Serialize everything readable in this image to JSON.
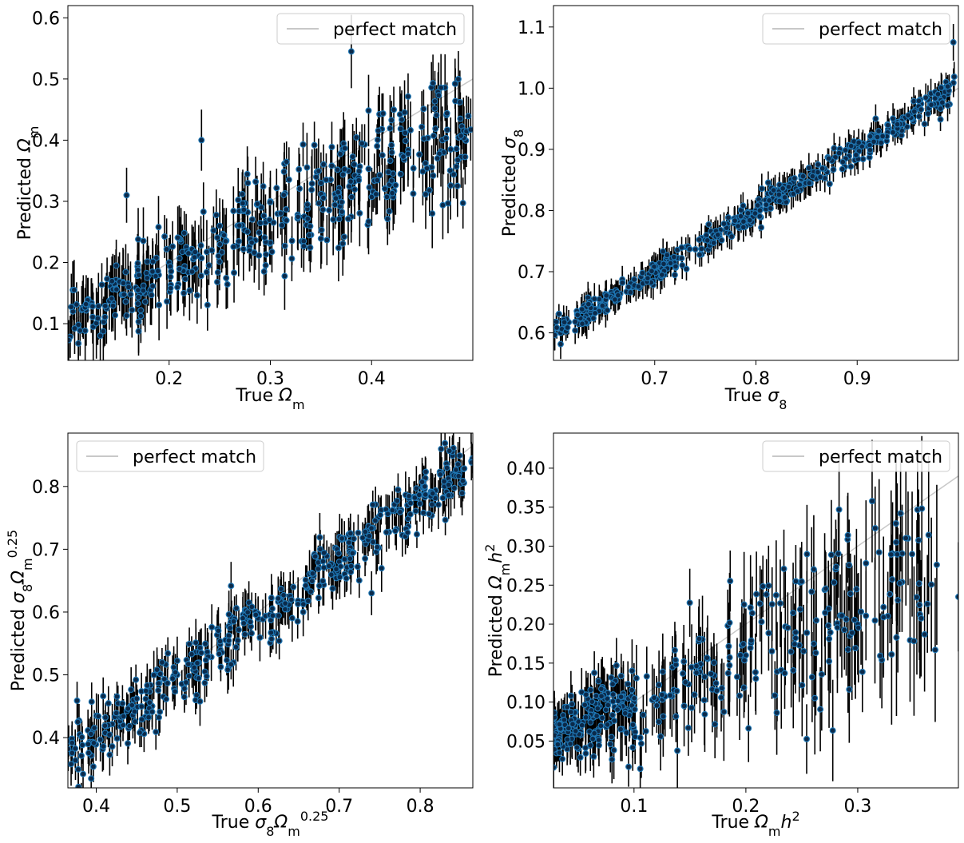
{
  "figure": {
    "legend_label": "perfect match"
  },
  "style": {
    "point_fill": "#0b2a4a",
    "point_edge": "#1f77b4",
    "error_bar_color": "#000000",
    "perfect_line_color": "#c8c8c8",
    "axes_color": "#000000"
  },
  "chart_data": [
    {
      "id": "omega_m",
      "type": "scatter",
      "xlabel_text": "True ",
      "xlabel_symbol": "Ω",
      "xlabel_sub": "m",
      "ylabel_text": "Predicted ",
      "ylabel_symbol": "Ω",
      "ylabel_sub": "m",
      "xlim": [
        0.1,
        0.5
      ],
      "ylim": [
        0.04,
        0.62
      ],
      "xticks": [
        0.2,
        0.3,
        0.4
      ],
      "yticks": [
        0.1,
        0.2,
        0.3,
        0.4,
        0.5,
        0.6
      ],
      "tick_decimals": 1,
      "legend_position": "top-right",
      "perfect_match_line": true,
      "n_points": 420,
      "points": [
        {
          "x": 0.105,
          "y": 0.12,
          "err": 0.04
        },
        {
          "x": 0.12,
          "y": 0.14,
          "err": 0.035
        },
        {
          "x": 0.15,
          "y": 0.17,
          "err": 0.04
        },
        {
          "x": 0.158,
          "y": 0.31,
          "err": 0.045
        },
        {
          "x": 0.2,
          "y": 0.2,
          "err": 0.04
        },
        {
          "x": 0.232,
          "y": 0.4,
          "err": 0.05
        },
        {
          "x": 0.25,
          "y": 0.26,
          "err": 0.045
        },
        {
          "x": 0.3,
          "y": 0.3,
          "err": 0.05
        },
        {
          "x": 0.35,
          "y": 0.33,
          "err": 0.05
        },
        {
          "x": 0.38,
          "y": 0.545,
          "err": 0.06
        },
        {
          "x": 0.42,
          "y": 0.38,
          "err": 0.055
        },
        {
          "x": 0.47,
          "y": 0.4,
          "err": 0.055
        }
      ],
      "noise_sd": 0.04,
      "err_mean": 0.045,
      "fit": {
        "slope": 0.82,
        "intercept": 0.02
      }
    },
    {
      "id": "sigma_8",
      "type": "scatter",
      "xlabel_text": "True ",
      "xlabel_symbol": "σ",
      "xlabel_sub": "8",
      "ylabel_text": "Predicted ",
      "ylabel_symbol": "σ",
      "ylabel_sub": "8",
      "xlim": [
        0.6,
        1.0
      ],
      "ylim": [
        0.555,
        1.135
      ],
      "xticks": [
        0.7,
        0.8,
        0.9
      ],
      "yticks": [
        0.6,
        0.7,
        0.8,
        0.9,
        1.0,
        1.1
      ],
      "tick_decimals": 1,
      "legend_position": "top-right",
      "perfect_match_line": true,
      "n_points": 420,
      "points": [
        {
          "x": 0.6,
          "y": 0.6,
          "err": 0.02
        },
        {
          "x": 0.7,
          "y": 0.7,
          "err": 0.02
        },
        {
          "x": 0.8,
          "y": 0.8,
          "err": 0.02
        },
        {
          "x": 0.9,
          "y": 0.9,
          "err": 0.02
        },
        {
          "x": 0.995,
          "y": 1.075,
          "err": 0.03
        }
      ],
      "noise_sd": 0.012,
      "err_mean": 0.02,
      "fit": {
        "slope": 1.0,
        "intercept": 0.0
      }
    },
    {
      "id": "s8_om025",
      "type": "scatter",
      "xlabel_text": "True ",
      "xlabel_symbol": "σ",
      "xlabel_sub": "8",
      "xlabel_symbol2": "Ω",
      "xlabel_sub2": "m",
      "xlabel_sup2": "0.25",
      "ylabel_text": "Predicted ",
      "ylabel_symbol": "σ",
      "ylabel_sub": "8",
      "ylabel_symbol2": "Ω",
      "ylabel_sub2": "m",
      "ylabel_sup2": "0.25",
      "xlim": [
        0.365,
        0.865
      ],
      "ylim": [
        0.32,
        0.885
      ],
      "xticks": [
        0.4,
        0.5,
        0.6,
        0.7,
        0.8
      ],
      "yticks": [
        0.4,
        0.5,
        0.6,
        0.7,
        0.8
      ],
      "tick_decimals": 1,
      "legend_position": "top-left",
      "perfect_match_line": true,
      "n_points": 420,
      "points": [
        {
          "x": 0.37,
          "y": 0.375,
          "err": 0.025
        },
        {
          "x": 0.5,
          "y": 0.5,
          "err": 0.03
        },
        {
          "x": 0.6,
          "y": 0.59,
          "err": 0.035
        },
        {
          "x": 0.7,
          "y": 0.68,
          "err": 0.04
        },
        {
          "x": 0.74,
          "y": 0.63,
          "err": 0.035
        },
        {
          "x": 0.83,
          "y": 0.8,
          "err": 0.04
        },
        {
          "x": 0.84,
          "y": 0.82,
          "err": 0.04
        }
      ],
      "noise_sd": 0.025,
      "err_mean": 0.03,
      "fit": {
        "slope": 0.95,
        "intercept": 0.02
      }
    },
    {
      "id": "omega_m_h2",
      "type": "scatter",
      "xlabel_text": "True ",
      "xlabel_symbol": "Ω",
      "xlabel_sub": "m",
      "xlabel_tail": "h",
      "xlabel_sup": "2",
      "ylabel_text": "Predicted ",
      "ylabel_symbol": "Ω",
      "ylabel_sub": "m",
      "ylabel_tail": "h",
      "ylabel_sup": "2",
      "xlim": [
        0.028,
        0.39
      ],
      "ylim": [
        -0.01,
        0.445
      ],
      "xticks": [
        0.1,
        0.2,
        0.3
      ],
      "yticks": [
        0.05,
        0.1,
        0.15,
        0.2,
        0.25,
        0.3,
        0.35,
        0.4
      ],
      "tick_decimals": 2,
      "xtick_decimals": 1,
      "legend_position": "top-right",
      "perfect_match_line": true,
      "n_points": 400,
      "points": [
        {
          "x": 0.03,
          "y": 0.055,
          "err": 0.025
        },
        {
          "x": 0.1,
          "y": 0.1,
          "err": 0.05
        },
        {
          "x": 0.2,
          "y": 0.16,
          "err": 0.06
        },
        {
          "x": 0.3,
          "y": 0.2,
          "err": 0.065
        },
        {
          "x": 0.345,
          "y": 0.31,
          "err": 0.06
        },
        {
          "x": 0.39,
          "y": 0.235,
          "err": 0.07
        }
      ],
      "noise_sd": 0.045,
      "err_mean": 0.055,
      "fit": {
        "slope": 0.6,
        "intercept": 0.04
      }
    }
  ]
}
